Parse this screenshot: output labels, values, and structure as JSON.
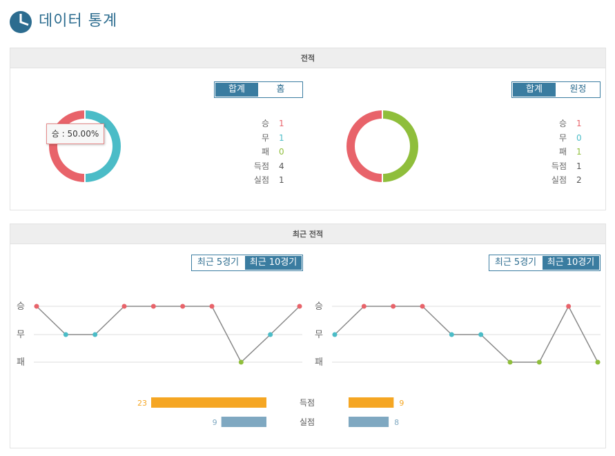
{
  "page_title": "데이터 통계",
  "colors": {
    "win": "#e8636a",
    "draw": "#4bbcc7",
    "loss": "#8fbe3b",
    "accent": "#3a7ca0",
    "goal_bar": "#f5a623",
    "conceded_bar": "#7fa8c1"
  },
  "record": {
    "title": "전적",
    "left": {
      "tabs": [
        {
          "label": "합계",
          "active": true
        },
        {
          "label": "홈",
          "active": false
        }
      ],
      "tooltip": "승 : 50.00%",
      "stats": [
        {
          "label": "승",
          "value": "1",
          "color": "#e8636a"
        },
        {
          "label": "무",
          "value": "1",
          "color": "#4bbcc7"
        },
        {
          "label": "패",
          "value": "0",
          "color": "#8fbe3b"
        },
        {
          "label": "득점",
          "value": "4",
          "color": "#555555"
        },
        {
          "label": "실점",
          "value": "1",
          "color": "#555555"
        }
      ],
      "donut": [
        {
          "key": "win",
          "value": 1
        },
        {
          "key": "draw",
          "value": 1
        },
        {
          "key": "loss",
          "value": 0
        }
      ]
    },
    "right": {
      "tabs": [
        {
          "label": "합계",
          "active": true
        },
        {
          "label": "원정",
          "active": false
        }
      ],
      "stats": [
        {
          "label": "승",
          "value": "1",
          "color": "#e8636a"
        },
        {
          "label": "무",
          "value": "0",
          "color": "#4bbcc7"
        },
        {
          "label": "패",
          "value": "1",
          "color": "#8fbe3b"
        },
        {
          "label": "득점",
          "value": "1",
          "color": "#555555"
        },
        {
          "label": "실점",
          "value": "2",
          "color": "#555555"
        }
      ],
      "donut": [
        {
          "key": "win",
          "value": 1
        },
        {
          "key": "draw",
          "value": 0
        },
        {
          "key": "loss",
          "value": 1
        }
      ]
    }
  },
  "recent": {
    "title": "최근 전적",
    "left": {
      "tabs": [
        {
          "label": "최근 5경기",
          "active": false
        },
        {
          "label": "최근 10경기",
          "active": true
        }
      ],
      "y_labels": [
        "승",
        "무",
        "패"
      ],
      "results": [
        "승",
        "무",
        "무",
        "승",
        "승",
        "승",
        "승",
        "패",
        "무",
        "승"
      ]
    },
    "right": {
      "tabs": [
        {
          "label": "최근 5경기",
          "active": false
        },
        {
          "label": "최근 10경기",
          "active": true
        }
      ],
      "y_labels": [
        "승",
        "무",
        "패"
      ],
      "results": [
        "무",
        "승",
        "승",
        "승",
        "무",
        "무",
        "패",
        "패",
        "승",
        "패"
      ]
    },
    "bars": {
      "max": 23,
      "rows": [
        {
          "label": "득점",
          "left": 23,
          "right": 9,
          "key": "goal"
        },
        {
          "label": "실점",
          "left": 9,
          "right": 8,
          "key": "conceded"
        }
      ]
    }
  }
}
